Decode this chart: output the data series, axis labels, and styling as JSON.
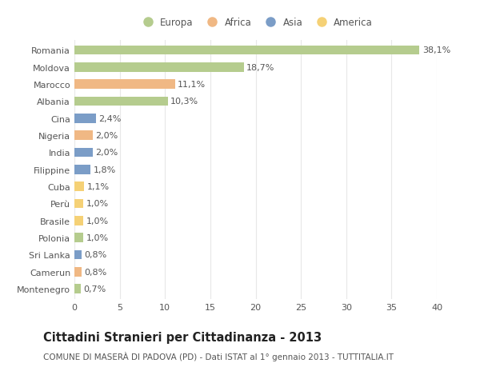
{
  "categories": [
    "Romania",
    "Moldova",
    "Marocco",
    "Albania",
    "Cina",
    "Nigeria",
    "India",
    "Filippine",
    "Cuba",
    "Perù",
    "Brasile",
    "Polonia",
    "Sri Lanka",
    "Camerun",
    "Montenegro"
  ],
  "values": [
    38.1,
    18.7,
    11.1,
    10.3,
    2.4,
    2.0,
    2.0,
    1.8,
    1.1,
    1.0,
    1.0,
    1.0,
    0.8,
    0.8,
    0.7
  ],
  "labels": [
    "38,1%",
    "18,7%",
    "11,1%",
    "10,3%",
    "2,4%",
    "2,0%",
    "2,0%",
    "1,8%",
    "1,1%",
    "1,0%",
    "1,0%",
    "1,0%",
    "0,8%",
    "0,8%",
    "0,7%"
  ],
  "continents": [
    "Europa",
    "Europa",
    "Africa",
    "Europa",
    "Asia",
    "Africa",
    "Asia",
    "Asia",
    "America",
    "America",
    "America",
    "Europa",
    "Asia",
    "Africa",
    "Europa"
  ],
  "continent_colors": {
    "Europa": "#b5cc8e",
    "Africa": "#f0b884",
    "Asia": "#7b9dc7",
    "America": "#f5d176"
  },
  "legend_order": [
    "Europa",
    "Africa",
    "Asia",
    "America"
  ],
  "title": "Cittadini Stranieri per Cittadinanza - 2013",
  "subtitle": "COMUNE DI MASERÀ DI PADOVA (PD) - Dati ISTAT al 1° gennaio 2013 - TUTTITALIA.IT",
  "xlim": [
    0,
    40
  ],
  "xticks": [
    0,
    5,
    10,
    15,
    20,
    25,
    30,
    35,
    40
  ],
  "background_color": "#ffffff",
  "plot_background_color": "#ffffff",
  "grid_color": "#e8e8e8",
  "title_fontsize": 10.5,
  "subtitle_fontsize": 7.5,
  "tick_fontsize": 8,
  "label_fontsize": 8,
  "legend_fontsize": 8.5
}
